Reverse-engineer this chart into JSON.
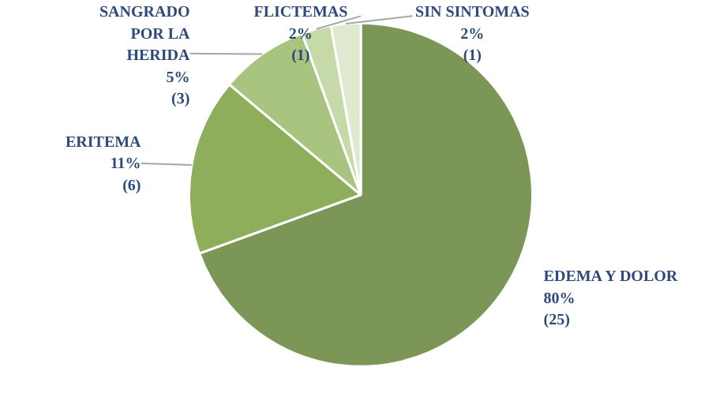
{
  "chart_data": {
    "type": "pie",
    "categories": [
      "EDEMA Y DOLOR",
      "ERITEMA",
      "SANGRADO POR LA HERIDA",
      "FLICTEMAS",
      "SIN SINTOMAS"
    ],
    "values": [
      25,
      6,
      3,
      1,
      1
    ],
    "value_labels": [
      "80%\n(25)",
      "11%\n(6)",
      "5%\n(3)",
      "2%\n(1)",
      "2%\n(1)"
    ],
    "colors": [
      "#7b9656",
      "#8fae5c",
      "#a9c47f",
      "#c6d9a9",
      "#dfe9cf"
    ]
  }
}
